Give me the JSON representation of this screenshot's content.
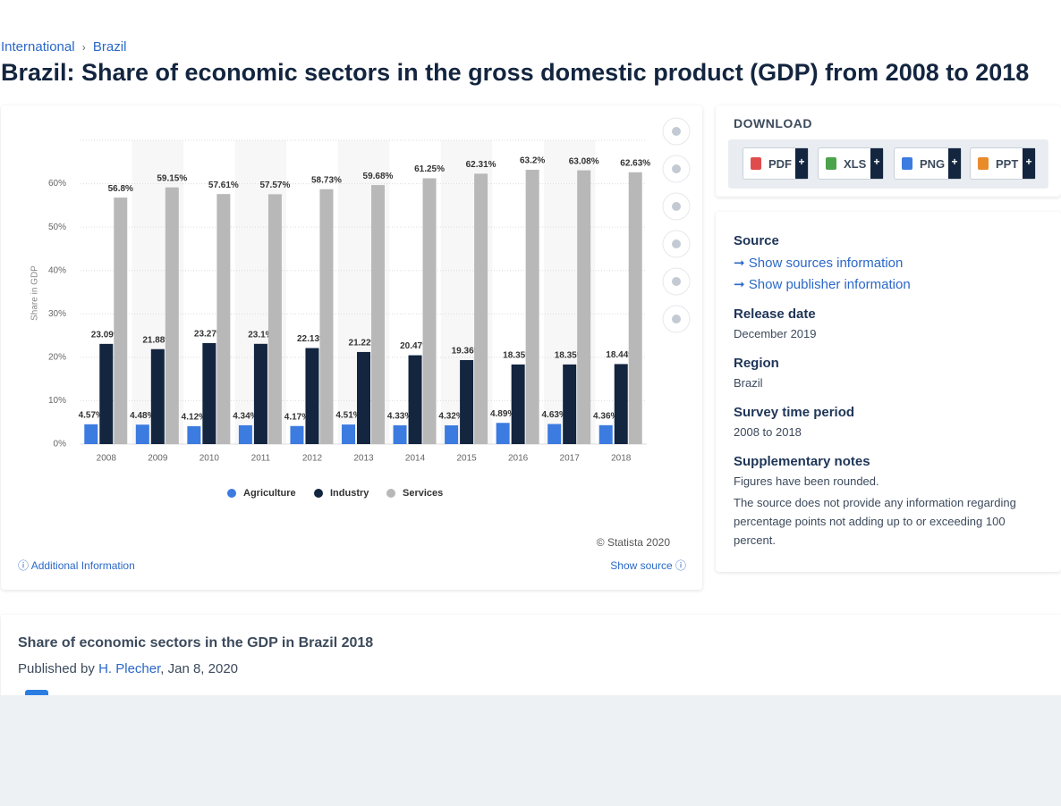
{
  "breadcrumb": [
    "International",
    "Brazil"
  ],
  "heading": "Brazil: Share of economic sectors in the gross domestic product (GDP) from 2008 to 2018",
  "chart_data": {
    "type": "bar",
    "y_label": "Share in GDP",
    "categories": [
      "2008",
      "2009",
      "2010",
      "2011",
      "2012",
      "2013",
      "2014",
      "2015",
      "2016",
      "2017",
      "2018"
    ],
    "series": [
      {
        "name": "Agriculture",
        "color": "#3c7be0",
        "values": [
          4.57,
          4.48,
          4.12,
          4.34,
          4.17,
          4.51,
          4.33,
          4.32,
          4.89,
          4.63,
          4.36
        ],
        "value_labels": [
          "4.57%",
          "4.48%",
          "4.12%",
          "4.34%",
          "4.17%",
          "4.51%",
          "4.33%",
          "4.32%",
          "4.89%",
          "4.63%",
          "4.36%"
        ]
      },
      {
        "name": "Industry",
        "color": "#13253f",
        "values": [
          23.09,
          21.88,
          23.27,
          23.1,
          22.13,
          21.22,
          20.47,
          19.36,
          18.35,
          18.35,
          18.44
        ],
        "value_labels": [
          "23.09%",
          "21.88%",
          "23.27%",
          "23.1%",
          "22.13%",
          "21.22%",
          "20.47%",
          "19.36%",
          "18.35%",
          "18.35%",
          "18.44%"
        ]
      },
      {
        "name": "Services",
        "color": "#b8b8b8",
        "values": [
          56.8,
          59.15,
          57.61,
          57.57,
          58.73,
          59.68,
          61.25,
          62.31,
          63.2,
          63.08,
          62.63
        ],
        "value_labels": [
          "56.8%",
          "59.15%",
          "57.61%",
          "57.57%",
          "58.73%",
          "59.68%",
          "61.25%",
          "62.31%",
          "63.2%",
          "63.08%",
          "62.63%"
        ]
      }
    ],
    "ylim": [
      0,
      70
    ],
    "yticks": [
      {
        "value": 0,
        "label": "0%"
      },
      {
        "value": 10,
        "label": "10%"
      },
      {
        "value": 20,
        "label": "20%"
      },
      {
        "value": 30,
        "label": "30%"
      },
      {
        "value": 40,
        "label": "40%"
      },
      {
        "value": 50,
        "label": "50%"
      },
      {
        "value": 60,
        "label": "60%"
      }
    ],
    "grid": true
  },
  "chart_footer": {
    "copyright": "© Statista 2020",
    "additional": "Additional Information",
    "show_source": "Show source"
  },
  "download": {
    "title": "DOWNLOAD",
    "formats": [
      "PDF",
      "XLS",
      "PNG",
      "PPT"
    ]
  },
  "info": {
    "source_title": "Source",
    "source_link": "Show sources information",
    "publisher_link": "Show publisher information",
    "release_title": "Release date",
    "release": "December 2019",
    "region_title": "Region",
    "region": "Brazil",
    "period_title": "Survey time period",
    "period": "2008 to 2018",
    "notes_title": "Supplementary notes",
    "notes": [
      "Figures have been rounded.",
      "The source does not provide any information regarding percentage points not adding up to or exceeding 100 percent."
    ]
  },
  "article": {
    "title": "Share of economic sectors in the GDP in Brazil 2018",
    "published_by": "Published by",
    "author": "H. Plecher",
    "date": ", Jan 8, 2020"
  }
}
